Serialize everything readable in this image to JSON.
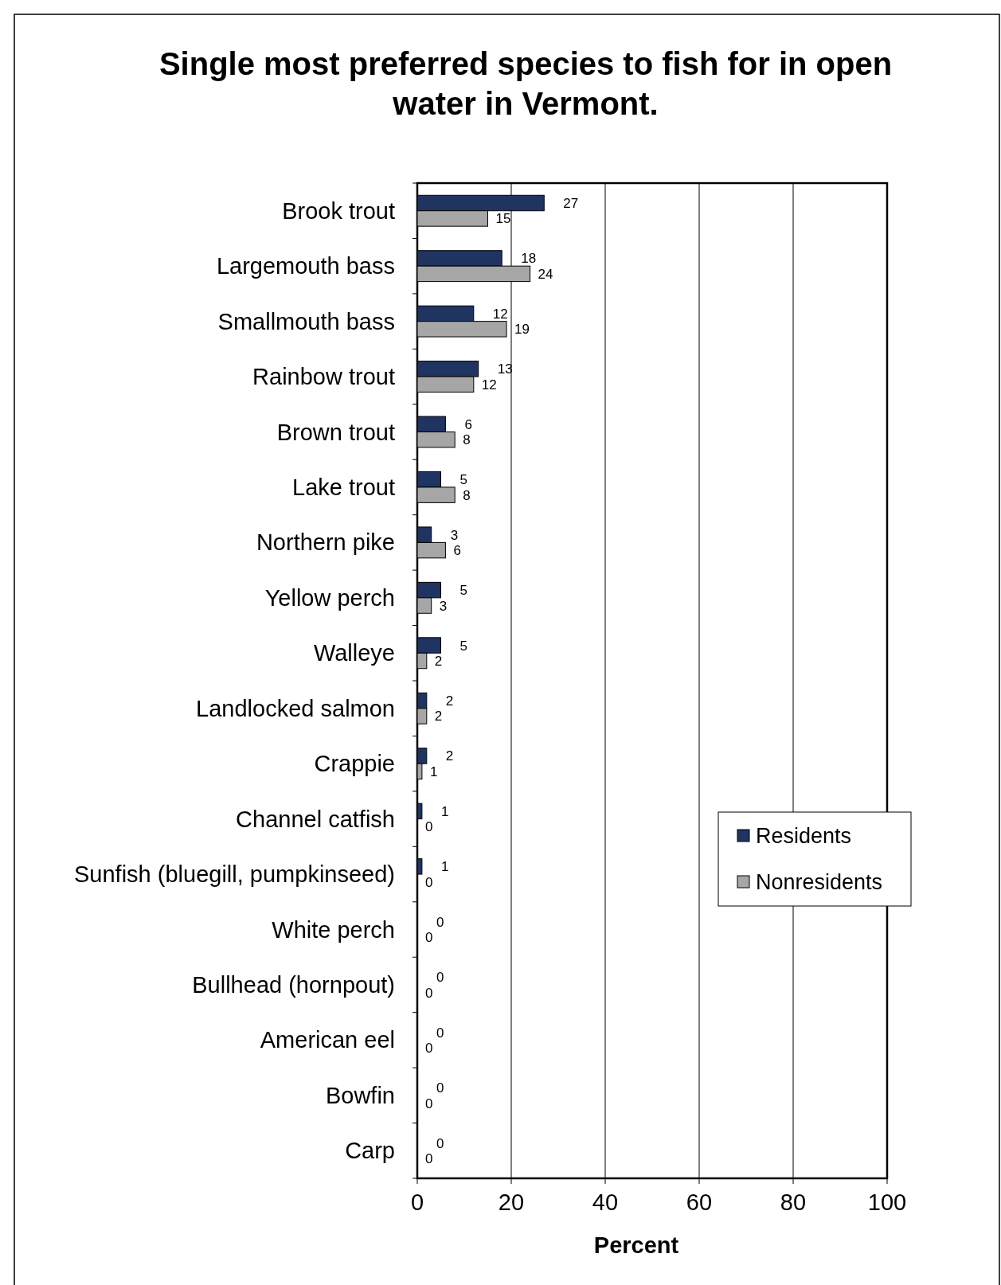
{
  "chart_data": {
    "type": "bar",
    "orientation": "horizontal",
    "title": "Single most preferred species to fish for in open water in Vermont.",
    "xlabel": "Percent",
    "categories": [
      "Brook trout",
      "Largemouth bass",
      "Smallmouth bass",
      "Rainbow trout",
      "Brown trout",
      "Lake trout",
      "Northern pike",
      "Yellow perch",
      "Walleye",
      "Landlocked salmon",
      "Crappie",
      "Channel catfish",
      "Sunfish (bluegill, pumpkinseed)",
      "White perch",
      "Bullhead (hornpout)",
      "American eel",
      "Bowfin",
      "Carp"
    ],
    "series": [
      {
        "name": "Residents",
        "color": "#1f3461",
        "values": [
          27,
          18,
          12,
          13,
          6,
          5,
          3,
          5,
          5,
          2,
          2,
          1,
          1,
          0,
          0,
          0,
          0,
          0
        ]
      },
      {
        "name": "Nonresidents",
        "color": "#a6a6a6",
        "values": [
          15,
          24,
          19,
          12,
          8,
          8,
          6,
          3,
          2,
          2,
          1,
          0,
          0,
          0,
          0,
          0,
          0,
          0
        ]
      }
    ],
    "xlim": [
      0,
      100
    ],
    "xticks": [
      0,
      20,
      40,
      60,
      80,
      100
    ],
    "grid": "x",
    "data_labels": true,
    "legend": "right"
  }
}
